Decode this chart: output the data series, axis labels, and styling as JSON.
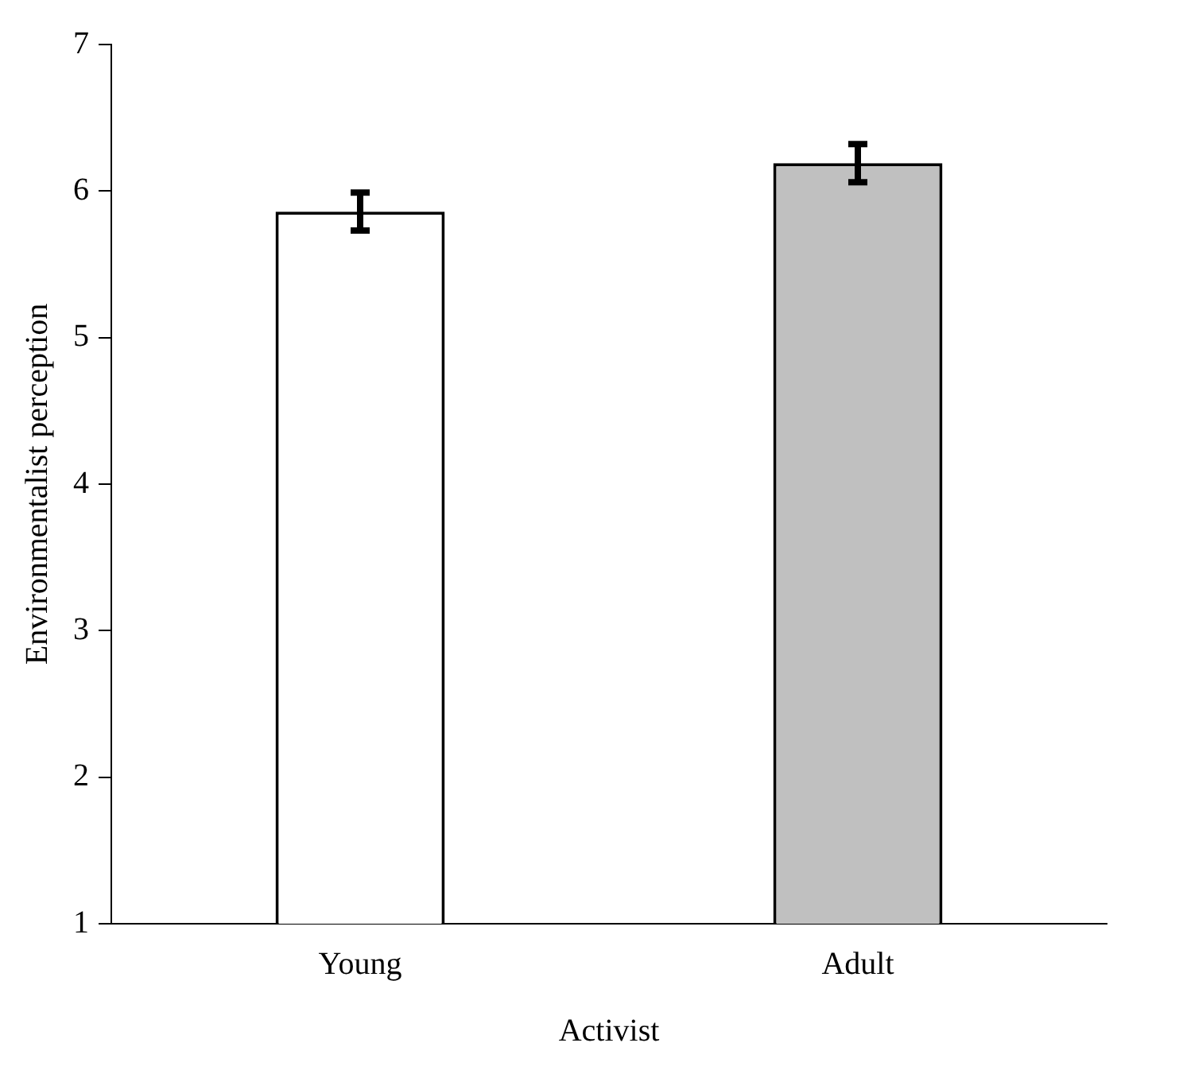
{
  "chart_data": {
    "type": "bar",
    "xlabel": "Activist",
    "ylabel": "Environmentalist perception",
    "categories": [
      "Young",
      "Adult"
    ],
    "values": [
      5.86,
      6.19
    ],
    "errors": [
      0.13,
      0.13
    ],
    "colors": [
      "#ffffff",
      "#c0c0c0"
    ],
    "ylim": [
      1,
      7
    ],
    "yticks": [
      1,
      2,
      3,
      4,
      5,
      6,
      7
    ],
    "grid": false,
    "legend": false
  }
}
